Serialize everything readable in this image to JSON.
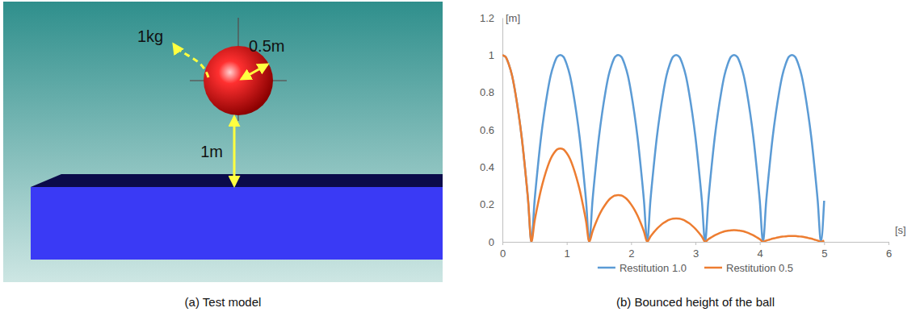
{
  "test_model": {
    "mass_label": "1kg",
    "radius_label": "0.5m",
    "height_label": "1m",
    "caption": "(a) Test model"
  },
  "chart_data": {
    "type": "line",
    "title": "(b) Bounced height of the ball",
    "y_label": "[m]",
    "x_label": "[s]",
    "x": [
      0,
      0.05,
      0.1,
      0.15,
      0.2,
      0.25,
      0.3,
      0.35,
      0.4,
      0.45,
      0.5,
      0.55,
      0.6,
      0.65,
      0.7,
      0.75,
      0.8,
      0.85,
      0.9,
      0.95,
      1,
      1.05,
      1.1,
      1.15,
      1.2,
      1.25,
      1.3,
      1.35,
      1.4,
      1.45,
      1.5,
      1.55,
      1.6,
      1.65,
      1.7,
      1.75,
      1.8,
      1.85,
      1.9,
      1.95,
      2,
      2.05,
      2.1,
      2.15,
      2.2,
      2.25,
      2.3,
      2.35,
      2.4,
      2.45,
      2.5,
      2.55,
      2.6,
      2.65,
      2.7,
      2.75,
      2.8,
      2.85,
      2.9,
      2.95,
      3,
      3.05,
      3.1,
      3.15,
      3.2,
      3.25,
      3.3,
      3.35,
      3.4,
      3.45,
      3.5,
      3.55,
      3.6,
      3.65,
      3.7,
      3.75,
      3.8,
      3.85,
      3.9,
      3.95,
      4,
      4.05,
      4.1,
      4.15,
      4.2,
      4.25,
      4.3,
      4.35,
      4.4,
      4.45,
      4.5,
      4.55,
      4.6,
      4.65,
      4.7,
      4.75,
      4.8,
      4.85,
      4.9,
      4.95,
      5
    ],
    "series": [
      {
        "name": "Restitution 1.0",
        "color": "#5b9bd5",
        "values": [
          1,
          0.99,
          0.95,
          0.89,
          0.8,
          0.69,
          0.56,
          0.4,
          0.22,
          0,
          0.22,
          0.4,
          0.56,
          0.69,
          0.8,
          0.89,
          0.95,
          0.99,
          1,
          0.99,
          0.95,
          0.89,
          0.8,
          0.69,
          0.56,
          0.4,
          0.22,
          0,
          0.22,
          0.4,
          0.56,
          0.69,
          0.8,
          0.89,
          0.95,
          0.99,
          1,
          0.99,
          0.95,
          0.89,
          0.8,
          0.69,
          0.56,
          0.4,
          0.22,
          0,
          0.22,
          0.4,
          0.56,
          0.69,
          0.8,
          0.89,
          0.95,
          0.99,
          1,
          0.99,
          0.95,
          0.89,
          0.8,
          0.69,
          0.56,
          0.4,
          0.22,
          0,
          0.22,
          0.4,
          0.56,
          0.69,
          0.8,
          0.89,
          0.95,
          0.99,
          1,
          0.99,
          0.95,
          0.89,
          0.8,
          0.69,
          0.56,
          0.4,
          0.22,
          0,
          0.22,
          0.4,
          0.56,
          0.69,
          0.8,
          0.89,
          0.95,
          0.99,
          1,
          0.99,
          0.95,
          0.89,
          0.8,
          0.69,
          0.56,
          0.4,
          0.22,
          0,
          0.22
        ]
      },
      {
        "name": "Restitution 0.5",
        "color": "#ed7d31",
        "values": [
          1,
          0.99,
          0.95,
          0.89,
          0.8,
          0.69,
          0.56,
          0.4,
          0.22,
          0,
          0.11,
          0.2,
          0.28,
          0.345,
          0.4,
          0.445,
          0.475,
          0.495,
          0.5,
          0.495,
          0.475,
          0.445,
          0.4,
          0.345,
          0.28,
          0.2,
          0.11,
          0,
          0.055,
          0.1,
          0.14,
          0.173,
          0.2,
          0.223,
          0.238,
          0.248,
          0.25,
          0.248,
          0.238,
          0.223,
          0.2,
          0.173,
          0.14,
          0.1,
          0.055,
          0,
          0.028,
          0.05,
          0.07,
          0.086,
          0.1,
          0.111,
          0.119,
          0.124,
          0.125,
          0.124,
          0.119,
          0.111,
          0.1,
          0.086,
          0.07,
          0.05,
          0.028,
          0,
          0.014,
          0.025,
          0.035,
          0.043,
          0.05,
          0.056,
          0.059,
          0.062,
          0.063,
          0.062,
          0.059,
          0.056,
          0.05,
          0.043,
          0.035,
          0.025,
          0.014,
          0,
          0.007,
          0.012,
          0.017,
          0.021,
          0.025,
          0.028,
          0.029,
          0.031,
          0.031,
          0.031,
          0.029,
          0.028,
          0.025,
          0.021,
          0.017,
          0.012,
          0.007,
          0,
          0.007
        ]
      }
    ],
    "xlim": [
      0,
      6
    ],
    "xticks": [
      0,
      1,
      2,
      3,
      4,
      5,
      6
    ],
    "ylim": [
      0,
      1.2
    ],
    "yticks": [
      0,
      0.2,
      0.4,
      0.6,
      0.8,
      1,
      1.2
    ],
    "grid": false,
    "legend": "bottom"
  }
}
